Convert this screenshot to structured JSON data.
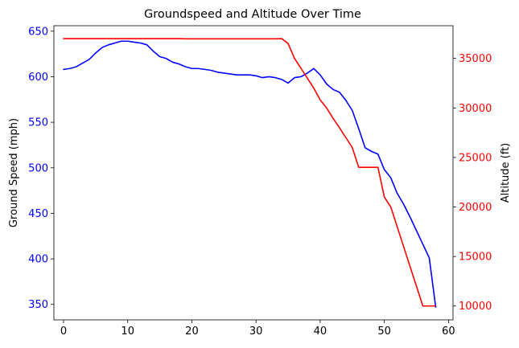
{
  "chart_data": {
    "type": "line",
    "title": "Groundspeed and Altitude Over Time",
    "xlabel": "",
    "ylabel_left": "Ground Speed (mph)",
    "ylabel_right": "Altitude (ft)",
    "xlim": [
      -1.5,
      60.7
    ],
    "ylim_left": [
      333,
      656
    ],
    "ylim_right": [
      8600,
      38300
    ],
    "x_ticks": [
      0,
      10,
      20,
      30,
      40,
      50,
      60
    ],
    "y_left_ticks": [
      350,
      400,
      450,
      500,
      550,
      600,
      650
    ],
    "y_right_ticks": [
      10000,
      15000,
      20000,
      25000,
      30000,
      35000
    ],
    "grid": false,
    "x": [
      0,
      1,
      2,
      3,
      4,
      5,
      6,
      7,
      8,
      9,
      10,
      11,
      12,
      13,
      14,
      15,
      16,
      17,
      18,
      19,
      20,
      21,
      22,
      23,
      24,
      25,
      26,
      27,
      28,
      29,
      30,
      31,
      32,
      33,
      34,
      35,
      36,
      37,
      38,
      39,
      40,
      41,
      42,
      43,
      44,
      45,
      46,
      47,
      48,
      49,
      50,
      51,
      52,
      53,
      54,
      55,
      56,
      57,
      58
    ],
    "series": [
      {
        "name": "",
        "axis": "left",
        "color": "#0000ff",
        "values": [
          608,
          609,
          611,
          615,
          619,
          626,
          632,
          635,
          637,
          639,
          639,
          638,
          637,
          635,
          628,
          622,
          620,
          616,
          614,
          611,
          609,
          609,
          608,
          607,
          605,
          604,
          603,
          602,
          602,
          602,
          601,
          599,
          600,
          599,
          597,
          593,
          599,
          600,
          604,
          609,
          602,
          592,
          586,
          583,
          574,
          563,
          543,
          522,
          518,
          515,
          498,
          489,
          472,
          460,
          446,
          431,
          416,
          401,
          347
        ]
      },
      {
        "name": "",
        "axis": "right",
        "color": "#ff0000",
        "values": [
          37000,
          37000,
          37000,
          37000,
          37000,
          37000,
          37000,
          37000,
          37000,
          37000,
          37000,
          37000,
          37000,
          37000,
          37000,
          37000,
          37000,
          37000,
          37000,
          36975,
          36975,
          36975,
          36975,
          36975,
          36975,
          36975,
          36975,
          36975,
          36975,
          36975,
          36975,
          36975,
          36975,
          36975,
          37000,
          36500,
          35000,
          34000,
          33000,
          32000,
          30800,
          30000,
          28950,
          28000,
          27000,
          26000,
          24000,
          24000,
          24000,
          24000,
          21000,
          20000,
          18000,
          16000,
          14000,
          12000,
          10000,
          10000,
          10000
        ]
      }
    ]
  },
  "colors": {
    "left_axis": "#0000ff",
    "right_axis": "#ff0000"
  }
}
